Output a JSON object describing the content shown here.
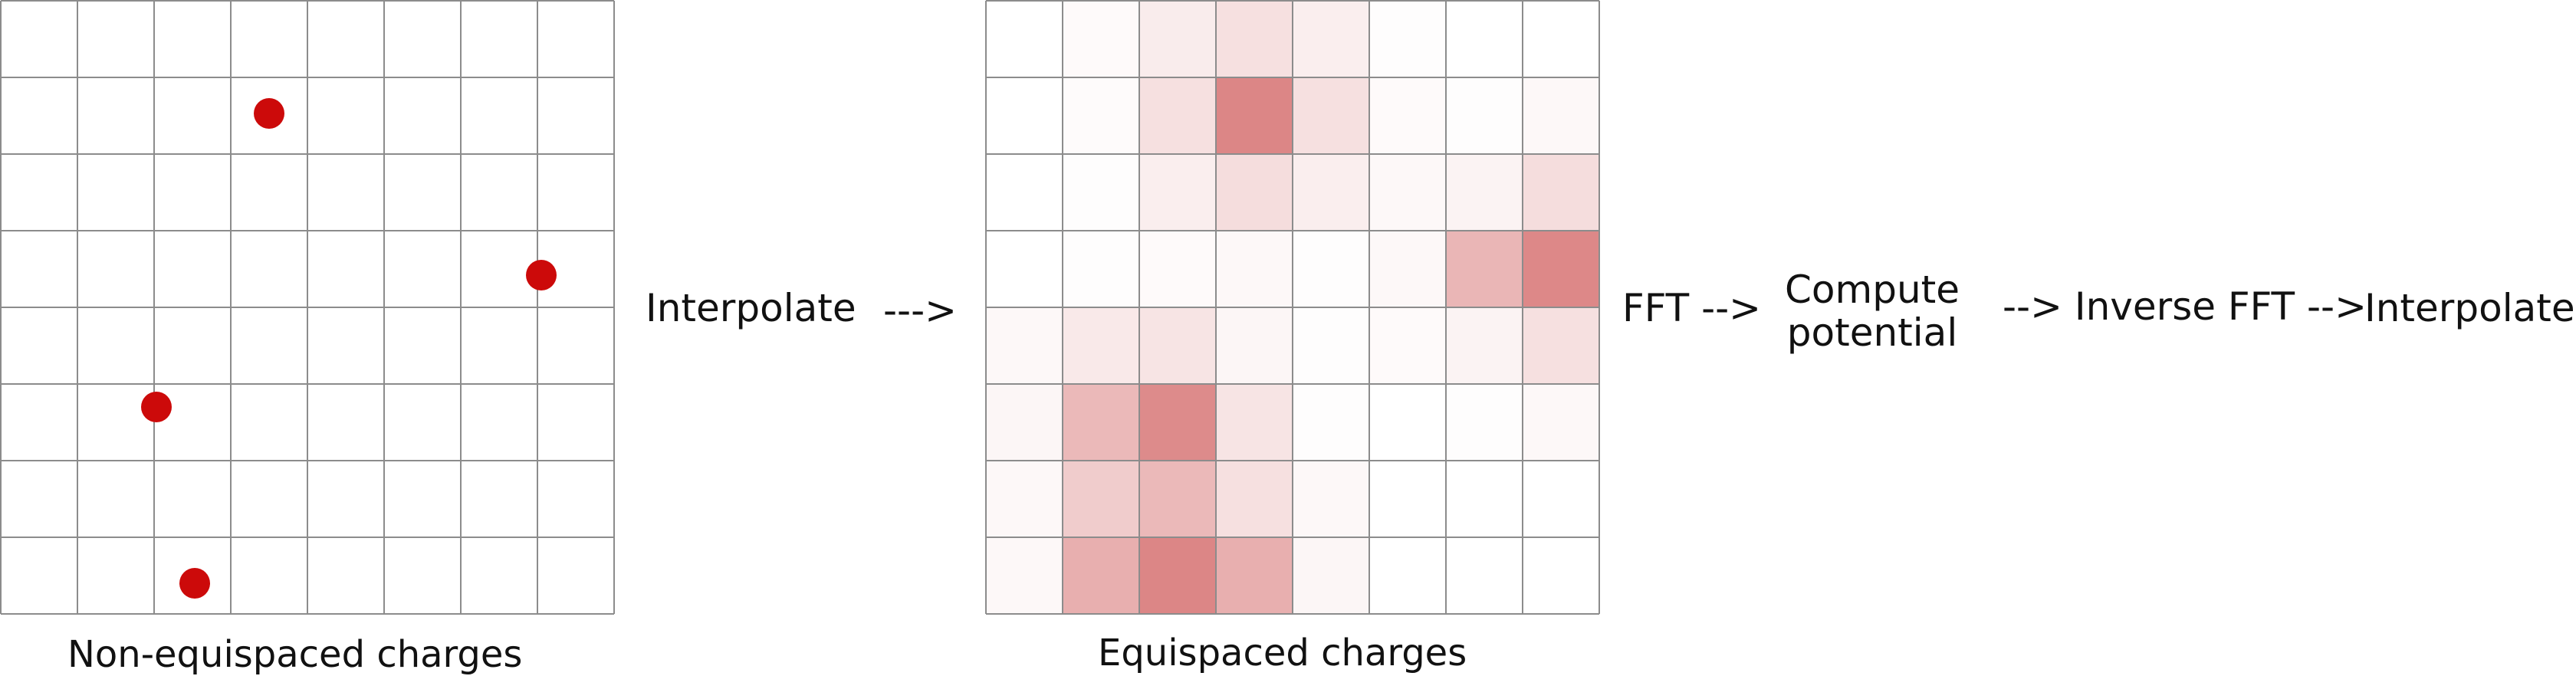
{
  "grid_left": {
    "caption": "Non-equispaced charges",
    "cols": 8,
    "rows": 8,
    "charges": [
      {
        "col": 3.5,
        "row": 1.47
      },
      {
        "col": 7.05,
        "row": 3.58
      },
      {
        "col": 2.03,
        "row": 5.3
      },
      {
        "col": 2.53,
        "row": 7.6
      }
    ],
    "charge_color": "#cc0a0a"
  },
  "grid_right": {
    "caption": "Equispaced charges",
    "cols": 8,
    "rows": 8,
    "intensity": [
      [
        0.0,
        0.04,
        0.16,
        0.26,
        0.14,
        0.02,
        0.0,
        0.0
      ],
      [
        0.0,
        0.03,
        0.26,
        1.0,
        0.26,
        0.04,
        0.02,
        0.06
      ],
      [
        0.0,
        0.02,
        0.14,
        0.28,
        0.14,
        0.06,
        0.1,
        0.28
      ],
      [
        0.0,
        0.02,
        0.04,
        0.06,
        0.02,
        0.06,
        0.6,
        0.98
      ],
      [
        0.06,
        0.18,
        0.22,
        0.08,
        0.02,
        0.04,
        0.1,
        0.26
      ],
      [
        0.08,
        0.58,
        0.96,
        0.22,
        0.02,
        0.0,
        0.02,
        0.06
      ],
      [
        0.06,
        0.42,
        0.58,
        0.26,
        0.06,
        0.0,
        0.0,
        0.0
      ],
      [
        0.06,
        0.66,
        1.0,
        0.66,
        0.08,
        0.0,
        0.0,
        0.0
      ]
    ],
    "heat_color": "#dc8686"
  },
  "steps": {
    "interpolate_1": "Interpolate",
    "arrow_1": "--->",
    "fft": "FFT -->",
    "compute": "Compute\npotential",
    "inverse_fft": "--> Inverse FFT -->",
    "interpolate_2": "Interpolate"
  },
  "colors": {
    "grid_line": "#8c8c8c",
    "text": "#111111"
  }
}
